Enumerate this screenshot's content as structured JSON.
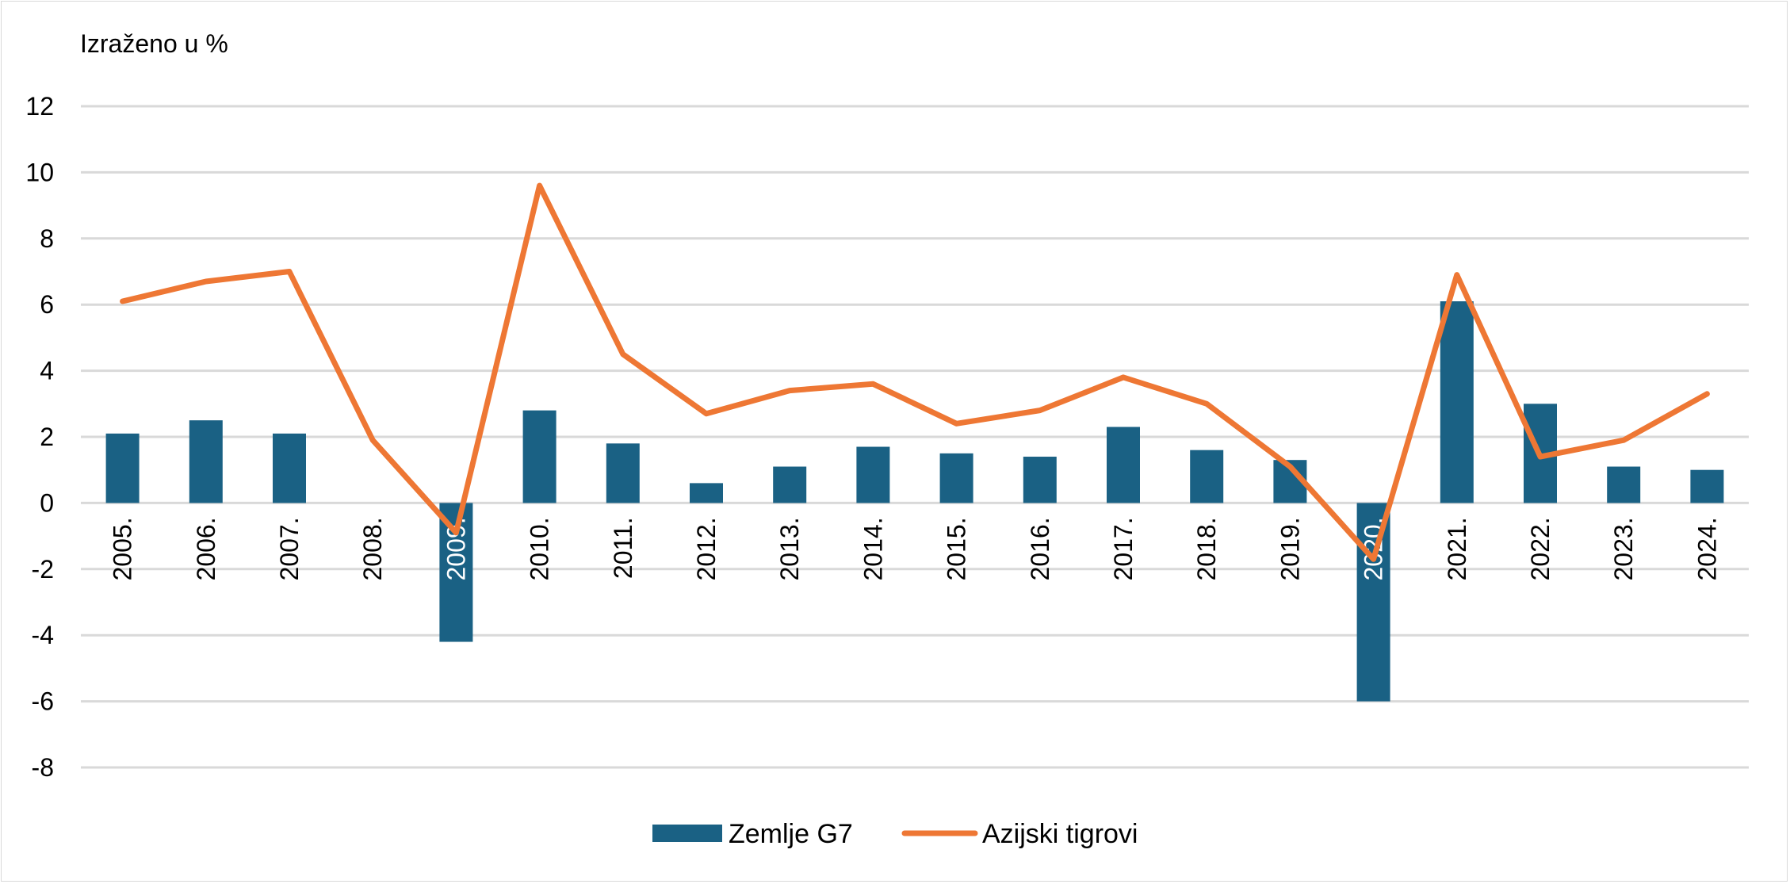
{
  "chart_data": {
    "type": "bar",
    "unit_label": "Izraženo u %",
    "categories": [
      "2005.",
      "2006.",
      "2007.",
      "2008.",
      "2009.",
      "2010.",
      "2011.",
      "2012.",
      "2013.",
      "2014.",
      "2015.",
      "2016.",
      "2017.",
      "2018.",
      "2019.",
      "2020.",
      "2021.",
      "2022.",
      "2023.",
      "2024."
    ],
    "ylim": [
      -8,
      12
    ],
    "yticks": [
      12,
      10,
      8,
      6,
      4,
      2,
      0,
      -2,
      -4,
      -6,
      -8
    ],
    "grid": true,
    "legend_position": "bottom-center",
    "series": [
      {
        "name": "Zemlje G7",
        "type": "bar",
        "color": "#1a6184",
        "values": [
          2.1,
          2.5,
          2.1,
          0.0,
          -4.2,
          2.8,
          1.8,
          0.6,
          1.1,
          1.7,
          1.5,
          1.4,
          2.3,
          1.6,
          1.3,
          -6.0,
          6.1,
          3.0,
          1.1,
          1.0
        ]
      },
      {
        "name": "Azijski tigrovi",
        "type": "line",
        "color": "#ee7734",
        "values": [
          6.1,
          6.7,
          7.0,
          1.9,
          -0.9,
          9.6,
          4.5,
          2.7,
          3.4,
          3.6,
          2.4,
          2.8,
          3.8,
          3.0,
          1.1,
          -1.7,
          6.9,
          1.4,
          1.9,
          3.3
        ]
      }
    ]
  }
}
